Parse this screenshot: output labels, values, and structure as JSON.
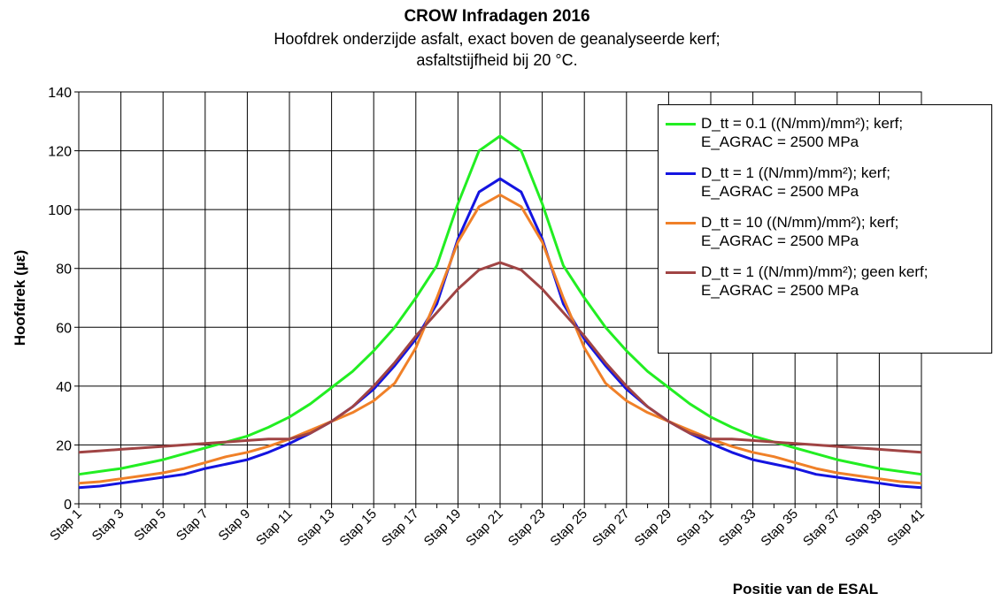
{
  "chart_data": {
    "type": "line",
    "title": "CROW Infradagen 2016",
    "subtitle": "Hoofdrek onderzijde  asfalt, exact boven de geanalyseerde kerf;\nasfaltstijfheid bij 20 °C.",
    "y_label": "Hoofdrek (µε)",
    "x_label": "Positie van de ESAL",
    "categories": [
      "Stap 1",
      null,
      "Stap 3",
      null,
      "Stap 5",
      null,
      "Stap 7",
      null,
      "Stap 9",
      null,
      "Stap 11",
      null,
      "Stap 13",
      null,
      "Stap 15",
      null,
      "Stap 17",
      null,
      "Stap 19",
      null,
      "Stap 21",
      null,
      "Stap 23",
      null,
      "Stap 25",
      null,
      "Stap 27",
      null,
      "Stap 29",
      null,
      "Stap 31",
      null,
      "Stap 33",
      null,
      "Stap 35",
      null,
      "Stap 37",
      null,
      "Stap 39",
      null,
      "Stap 41"
    ],
    "series": [
      {
        "name": "D_tt = 0.1 ((N/mm)/mm²); kerf;\nE_AGRAC = 2500 MPa",
        "color": "#22ee22",
        "values": [
          10,
          11,
          12,
          13.5,
          15,
          17,
          19,
          21,
          23,
          26,
          29.5,
          34,
          39.5,
          45,
          52,
          60,
          70,
          81,
          102,
          120,
          125,
          120,
          102,
          81,
          70,
          60,
          52,
          45,
          39.5,
          34,
          29.5,
          26,
          23,
          21,
          19,
          17,
          15,
          13.5,
          12,
          11,
          10
        ]
      },
      {
        "name": "D_tt = 1 ((N/mm)/mm²); kerf;\nE_AGRAC = 2500 MPa",
        "color": "#1414e0",
        "values": [
          5.5,
          6,
          7,
          8,
          9,
          10,
          12,
          13.5,
          15,
          17.5,
          20.5,
          24,
          28,
          33,
          39,
          47,
          56,
          68,
          90,
          106,
          110.5,
          106,
          90,
          68,
          56,
          47,
          39,
          33,
          28,
          24,
          20.5,
          17.5,
          15,
          13.5,
          12,
          10,
          9,
          8,
          7,
          6,
          5.5
        ]
      },
      {
        "name": "D_tt = 10 ((N/mm)/mm²); kerf;\nE_AGRAC = 2500 MPa",
        "color": "#f08028",
        "values": [
          7,
          7.5,
          8.5,
          9.5,
          10.5,
          12,
          14,
          16,
          17.5,
          19.5,
          22,
          25,
          28,
          31,
          35,
          41,
          53,
          70,
          89,
          101,
          105,
          101,
          89,
          70,
          53,
          41,
          35,
          31,
          28,
          25,
          22,
          19.5,
          17.5,
          16,
          14,
          12,
          10.5,
          9.5,
          8.5,
          7.5,
          7
        ]
      },
      {
        "name": "D_tt = 1 ((N/mm)/mm²); geen kerf;\nE_AGRAC = 2500 MPa",
        "color": "#a04444",
        "values": [
          17.5,
          18,
          18.5,
          19,
          19.5,
          20,
          20.5,
          21,
          21.5,
          22,
          22,
          24,
          28,
          33,
          40,
          48,
          57,
          65,
          73,
          79.5,
          82,
          79.5,
          73,
          65,
          57,
          48,
          40,
          33,
          28,
          24,
          22,
          22,
          21.5,
          21,
          20.5,
          20,
          19.5,
          19,
          18.5,
          18,
          17.5
        ]
      }
    ],
    "ylim": [
      0,
      140
    ],
    "yticks": [
      0,
      20,
      40,
      60,
      80,
      100,
      120,
      140
    ],
    "grid": true,
    "legend": "top-right"
  }
}
